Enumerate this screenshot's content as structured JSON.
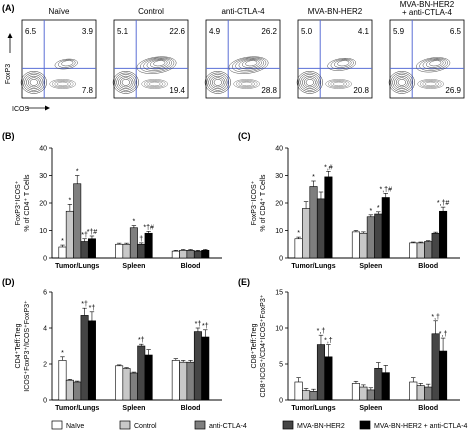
{
  "flow": {
    "label": "(A)",
    "ylabel": "FoxP3",
    "xlabel": "ICOS",
    "panels": [
      {
        "title": "Naïve",
        "tl": "6.5",
        "tr": "3.9",
        "br": "7.8"
      },
      {
        "title": "Control",
        "tl": "5.1",
        "tr": "22.6",
        "br": "19.4"
      },
      {
        "title": "anti-CTLA-4",
        "tl": "4.9",
        "tr": "26.2",
        "br": "28.8"
      },
      {
        "title": "MVA-BN-HER2",
        "tl": "5.0",
        "tr": "4.1",
        "br": "20.8"
      },
      {
        "title": "MVA-BN-HER2\n+ anti-CTLA-4",
        "tl": "5.9",
        "tr": "6.5",
        "br": "26.9"
      }
    ]
  },
  "colors": [
    "#ffffff",
    "#c8c8c8",
    "#7f7f7f",
    "#454545",
    "#000000"
  ],
  "chart_data": [
    {
      "label": "(B)",
      "type": "bar",
      "ylabel": "FoxP3⁺ICOS⁺\n% of CD4⁺ T Cells",
      "ylim": [
        0,
        40
      ],
      "yticks": [
        0,
        10,
        20,
        30,
        40
      ],
      "categories": [
        "Tumor/Lungs",
        "Spleen",
        "Blood"
      ],
      "series": [
        {
          "name": "Naïve",
          "values": [
            4,
            5,
            2.5
          ],
          "err": [
            0.7,
            0.4,
            0.3
          ]
        },
        {
          "name": "Control",
          "values": [
            17,
            5,
            2.8
          ],
          "err": [
            2.5,
            0.4,
            0.3
          ]
        },
        {
          "name": "anti-CTLA-4",
          "values": [
            27,
            11,
            2.8
          ],
          "err": [
            3,
            0.8,
            0.3
          ]
        },
        {
          "name": "MVA-BN-HER2",
          "values": [
            6,
            5,
            2.5
          ],
          "err": [
            1,
            0.5,
            0.3
          ]
        },
        {
          "name": "MVA-BN-HER2 + anti-CTLA-4",
          "values": [
            7,
            9,
            2.8
          ],
          "err": [
            1,
            0.7,
            0.3
          ]
        }
      ],
      "annotations": [
        [
          "*",
          "*",
          "*",
          "*†",
          "*†#"
        ],
        [
          "",
          "",
          "*",
          "†",
          "*†#"
        ],
        [
          "",
          "",
          "",
          "",
          ""
        ]
      ]
    },
    {
      "label": "(C)",
      "type": "bar",
      "ylabel": "FoxP3⁻ICOS⁺\n% of CD4⁺ T Cells",
      "ylim": [
        0,
        40
      ],
      "yticks": [
        0,
        10,
        20,
        30,
        40
      ],
      "categories": [
        "Tumor/Lungs",
        "Spleen",
        "Blood"
      ],
      "series": [
        {
          "name": "Naïve",
          "values": [
            7,
            9.5,
            5.5
          ],
          "err": [
            0.6,
            0.5,
            0.3
          ]
        },
        {
          "name": "Control",
          "values": [
            18,
            9,
            5.5
          ],
          "err": [
            2.5,
            0.5,
            0.3
          ]
        },
        {
          "name": "anti-CTLA-4",
          "values": [
            26,
            15,
            6
          ],
          "err": [
            2,
            0.7,
            0.3
          ]
        },
        {
          "name": "MVA-BN-HER2",
          "values": [
            21.5,
            16,
            9
          ],
          "err": [
            2.5,
            0.8,
            0.4
          ]
        },
        {
          "name": "MVA-BN-HER2 + anti-CTLA-4",
          "values": [
            29.5,
            22,
            17
          ],
          "err": [
            2,
            1.5,
            1.5
          ]
        }
      ],
      "annotations": [
        [
          "*",
          "",
          "*",
          "",
          "*,#"
        ],
        [
          "",
          "",
          "*",
          "*",
          "*,†#"
        ],
        [
          "",
          "",
          "",
          "",
          "*,†#"
        ]
      ]
    },
    {
      "label": "(D)",
      "type": "bar",
      "ylabel": "CD4⁺Teff:Treg\nICOS⁺FoxP3⁺/ICOS⁺FoxP3⁺",
      "ylim": [
        0,
        6
      ],
      "yticks": [
        0,
        2,
        4,
        6
      ],
      "categories": [
        "Tumor/Lungs",
        "Spleen",
        "Blood"
      ],
      "series": [
        {
          "name": "Naïve",
          "values": [
            2.2,
            1.9,
            2.2
          ],
          "err": [
            0.2,
            0.05,
            0.1
          ]
        },
        {
          "name": "Control",
          "values": [
            1.1,
            1.75,
            2.1
          ],
          "err": [
            0.05,
            0.05,
            0.1
          ]
        },
        {
          "name": "anti-CTLA-4",
          "values": [
            1,
            1.5,
            2.1
          ],
          "err": [
            0.05,
            0.05,
            0.1
          ]
        },
        {
          "name": "MVA-BN-HER2",
          "values": [
            4.7,
            3,
            3.8
          ],
          "err": [
            0.4,
            0.1,
            0.2
          ]
        },
        {
          "name": "MVA-BN-HER2 + anti-CTLA-4",
          "values": [
            4.4,
            2.5,
            3.5
          ],
          "err": [
            0.5,
            0.3,
            0.4
          ]
        }
      ],
      "annotations": [
        [
          "*",
          "",
          "",
          "*†",
          "*†"
        ],
        [
          "",
          "",
          "",
          "*†",
          ""
        ],
        [
          "",
          "",
          "",
          "*†",
          "*†"
        ]
      ]
    },
    {
      "label": "(E)",
      "type": "bar",
      "ylabel": "CD8⁺Teff:Treg\nCD8⁺ICOS⁺/CD4⁺ICOS⁺FoxP3⁺",
      "ylim": [
        0,
        15
      ],
      "yticks": [
        0,
        5,
        10,
        15
      ],
      "categories": [
        "Tumor/Lungs",
        "Spleen",
        "Blood"
      ],
      "series": [
        {
          "name": "Naïve",
          "values": [
            2.5,
            2.3,
            2.5
          ],
          "err": [
            0.6,
            0.3,
            0.6
          ]
        },
        {
          "name": "Control",
          "values": [
            1.3,
            1.8,
            2.0
          ],
          "err": [
            0.3,
            0.3,
            0.3
          ]
        },
        {
          "name": "anti-CTLA-4",
          "values": [
            1.2,
            1.4,
            1.8
          ],
          "err": [
            0.3,
            0.3,
            0.4
          ]
        },
        {
          "name": "MVA-BN-HER2",
          "values": [
            7.7,
            4.4,
            9.2
          ],
          "err": [
            1.3,
            0.8,
            1.8
          ]
        },
        {
          "name": "MVA-BN-HER2 + anti-CTLA-4",
          "values": [
            6.0,
            3.8,
            6.8
          ],
          "err": [
            1.7,
            1.0,
            1.8
          ]
        }
      ],
      "annotations": [
        [
          "",
          "",
          "",
          "*,†",
          "*,†"
        ],
        [
          "",
          "",
          "",
          "",
          ""
        ],
        [
          "",
          "",
          "",
          "*,†",
          "*,†"
        ]
      ]
    }
  ],
  "legend": {
    "items": [
      "Naïve",
      "Control",
      "anti-CTLA-4",
      "MVA-BN-HER2",
      "MVA-BN-HER2 + anti-CTLA-4"
    ]
  }
}
